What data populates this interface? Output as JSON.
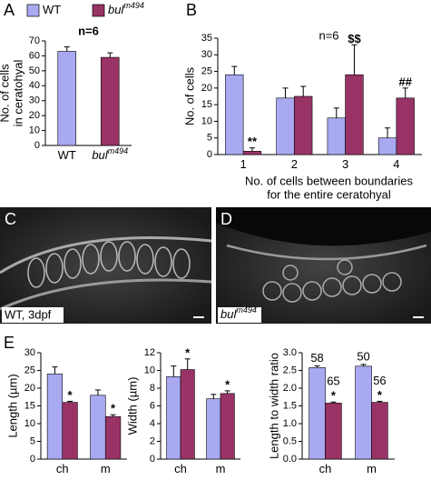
{
  "panel_labels": [
    "A",
    "B",
    "C",
    "D",
    "E"
  ],
  "images": [
    {
      "caption": "WT, 3dpf"
    },
    {
      "caption": "bul",
      "caption_sup": "m494"
    }
  ],
  "chart_data": [
    {
      "type": "bar",
      "ylabel": [
        "No. of cells",
        "in ceratohyal"
      ],
      "annotation": "n=6",
      "categories": [
        "WT",
        "bul"
      ],
      "category_sups": [
        null,
        "m494"
      ],
      "colors": [
        "#a9a9f2",
        "#993366"
      ],
      "series": [
        {
          "values": [
            63,
            59
          ],
          "errors": [
            3,
            3
          ]
        }
      ],
      "ylim": [
        0,
        70
      ],
      "yticks": [
        0,
        10,
        20,
        30,
        40,
        50,
        60,
        70
      ]
    },
    {
      "type": "bar",
      "ylabel": [
        "No. of cells"
      ],
      "annotation": "n=6",
      "xlabel": [
        "No. of cells between boundaries",
        "for the entire ceratohyal"
      ],
      "categories": [
        "1",
        "2",
        "3",
        "4"
      ],
      "series": [
        {
          "name": "WT",
          "color": "#a9a9f2",
          "values": [
            24,
            17,
            11,
            5
          ],
          "errors": [
            2.5,
            3,
            3,
            3
          ],
          "annotations": [
            null,
            null,
            null,
            null
          ]
        },
        {
          "name": "bul",
          "name_sup": "m494",
          "color": "#993366",
          "values": [
            1,
            17.5,
            24,
            17
          ],
          "errors": [
            1,
            3,
            9,
            3
          ],
          "annotations": [
            "**",
            null,
            "$$",
            "##"
          ]
        }
      ],
      "ylim": [
        0,
        35
      ],
      "yticks": [
        0,
        5,
        10,
        15,
        20,
        25,
        30,
        35
      ]
    },
    {
      "type": "bar",
      "ylabel": [
        "Length (µm)"
      ],
      "categories": [
        "ch",
        "m"
      ],
      "series": [
        {
          "color": "#a9a9f2",
          "values": [
            24,
            18
          ],
          "errors": [
            2,
            1.5
          ],
          "annotations": [
            null,
            null
          ]
        },
        {
          "color": "#993366",
          "values": [
            16,
            12
          ],
          "errors": [
            0.3,
            0.5
          ],
          "annotations": [
            "*",
            "*"
          ]
        }
      ],
      "ylim": [
        0,
        30
      ],
      "yticks": [
        0,
        5,
        10,
        15,
        20,
        25,
        30
      ]
    },
    {
      "type": "bar",
      "ylabel": [
        "Width (µm)"
      ],
      "categories": [
        "ch",
        "m"
      ],
      "series": [
        {
          "color": "#a9a9f2",
          "values": [
            9.3,
            6.8
          ],
          "errors": [
            1.2,
            0.5
          ],
          "annotations": [
            null,
            null
          ]
        },
        {
          "color": "#993366",
          "values": [
            10.1,
            7.4
          ],
          "errors": [
            1.2,
            0.3
          ],
          "annotations": [
            "*",
            "*"
          ]
        }
      ],
      "ylim": [
        0,
        12
      ],
      "yticks": [
        0,
        2,
        4,
        6,
        8,
        10,
        12
      ]
    },
    {
      "type": "bar",
      "ylabel": [
        "Length to width ratio"
      ],
      "categories": [
        "ch",
        "m"
      ],
      "series": [
        {
          "color": "#a9a9f2",
          "values": [
            2.58,
            2.62
          ],
          "errors": [
            0.05,
            0.05
          ],
          "n_labels": [
            58,
            50
          ],
          "annotations": [
            null,
            null
          ]
        },
        {
          "color": "#993366",
          "values": [
            1.58,
            1.6
          ],
          "errors": [
            0.03,
            0.03
          ],
          "n_labels": [
            65,
            56
          ],
          "annotations": [
            "*",
            "*"
          ]
        }
      ],
      "ylim": [
        0,
        3.0
      ],
      "yticks": [
        {
          "value": 0,
          "label": "0.0"
        },
        0.5,
        {
          "value": 1,
          "label": "1.0"
        },
        1.5,
        {
          "value": 2,
          "label": "2.0"
        },
        2.5,
        {
          "value": 3,
          "label": "3.0"
        }
      ]
    }
  ]
}
